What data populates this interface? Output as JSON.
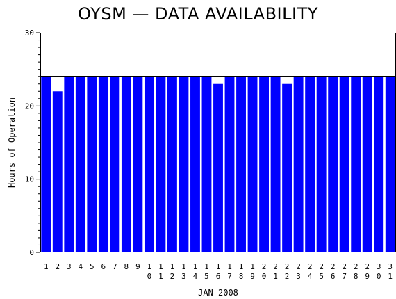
{
  "chart_data": {
    "type": "bar",
    "title": "OYSM — DATA AVAILABILITY",
    "xlabel": "JAN 2008",
    "ylabel": "Hours of Operation",
    "ylim": [
      0,
      30
    ],
    "yticks": [
      0,
      10,
      20,
      30
    ],
    "max_hours": 24,
    "grid": false,
    "legend": "none",
    "bar_color": "#0000ff",
    "categories": [
      "1",
      "2",
      "3",
      "4",
      "5",
      "6",
      "7",
      "8",
      "9",
      "10",
      "11",
      "12",
      "13",
      "14",
      "15",
      "16",
      "17",
      "18",
      "19",
      "20",
      "21",
      "22",
      "23",
      "24",
      "25",
      "26",
      "27",
      "28",
      "29",
      "30",
      "31"
    ],
    "values": [
      24,
      22,
      24,
      24,
      24,
      24,
      24,
      24,
      24,
      24,
      24,
      24,
      24,
      24,
      24,
      23,
      24,
      24,
      24,
      24,
      24,
      23,
      24,
      24,
      24,
      24,
      24,
      24,
      24,
      24,
      24
    ]
  }
}
